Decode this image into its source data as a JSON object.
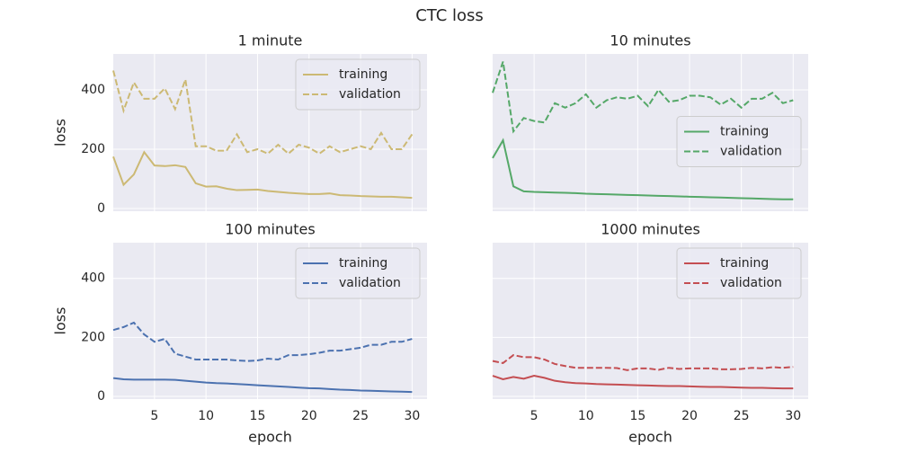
{
  "title": "CTC loss",
  "chart_data": [
    {
      "type": "line",
      "title": "1 minute",
      "ylabel": "loss",
      "x": [
        1,
        2,
        3,
        4,
        5,
        6,
        7,
        8,
        9,
        10,
        11,
        12,
        13,
        14,
        15,
        16,
        17,
        18,
        19,
        20,
        21,
        22,
        23,
        24,
        25,
        26,
        27,
        28,
        29,
        30
      ],
      "xlim": [
        1,
        31.45
      ],
      "ylim": [
        -9,
        521
      ],
      "xticks": [
        5,
        10,
        15,
        20,
        25,
        30
      ],
      "yticks": [
        0,
        200,
        400
      ],
      "xtick_labels": false,
      "ytick_labels": true,
      "grid": true,
      "legend": "upper right",
      "series": [
        {
          "name": "training",
          "color": "#ccb974",
          "linestyle": "solid",
          "values": [
            175,
            80,
            115,
            190,
            145,
            143,
            146,
            140,
            85,
            74,
            75,
            67,
            62,
            63,
            64,
            59,
            56,
            53,
            51,
            49,
            49,
            51,
            45,
            44,
            42,
            41,
            40,
            40,
            38,
            36
          ]
        },
        {
          "name": "validation",
          "color": "#ccb974",
          "linestyle": "dashed",
          "values": [
            465,
            330,
            425,
            370,
            370,
            405,
            335,
            435,
            210,
            210,
            195,
            195,
            250,
            190,
            200,
            185,
            215,
            185,
            215,
            205,
            185,
            210,
            190,
            200,
            210,
            200,
            255,
            200,
            200,
            250
          ]
        }
      ]
    },
    {
      "type": "line",
      "title": "10 minutes",
      "x": [
        1,
        2,
        3,
        4,
        5,
        6,
        7,
        8,
        9,
        10,
        11,
        12,
        13,
        14,
        15,
        16,
        17,
        18,
        19,
        20,
        21,
        22,
        23,
        24,
        25,
        26,
        27,
        28,
        29,
        30
      ],
      "xlim": [
        1,
        31.45
      ],
      "ylim": [
        -9,
        521
      ],
      "xticks": [
        5,
        10,
        15,
        20,
        25,
        30
      ],
      "yticks": [
        0,
        200,
        400
      ],
      "xtick_labels": false,
      "ytick_labels": false,
      "grid": true,
      "legend": "center right",
      "series": [
        {
          "name": "training",
          "color": "#55a868",
          "linestyle": "solid",
          "values": [
            170,
            230,
            75,
            58,
            56,
            55,
            54,
            53,
            52,
            50,
            49,
            48,
            47,
            46,
            45,
            44,
            43,
            42,
            41,
            40,
            39,
            38,
            37,
            36,
            35,
            34,
            33,
            32,
            31,
            31
          ]
        },
        {
          "name": "validation",
          "color": "#55a868",
          "linestyle": "dashed",
          "values": [
            390,
            495,
            260,
            305,
            295,
            290,
            355,
            340,
            355,
            385,
            340,
            365,
            375,
            370,
            380,
            345,
            400,
            360,
            365,
            380,
            380,
            375,
            350,
            370,
            340,
            370,
            370,
            390,
            355,
            365
          ]
        }
      ]
    },
    {
      "type": "line",
      "title": "100 minutes",
      "ylabel": "loss",
      "xlabel": "epoch",
      "x": [
        1,
        2,
        3,
        4,
        5,
        6,
        7,
        8,
        9,
        10,
        11,
        12,
        13,
        14,
        15,
        16,
        17,
        18,
        19,
        20,
        21,
        22,
        23,
        24,
        25,
        26,
        27,
        28,
        29,
        30
      ],
      "xlim": [
        1,
        31.45
      ],
      "ylim": [
        -9,
        521
      ],
      "xticks": [
        5,
        10,
        15,
        20,
        25,
        30
      ],
      "yticks": [
        0,
        200,
        400
      ],
      "xtick_labels": true,
      "ytick_labels": true,
      "grid": true,
      "legend": "upper right",
      "series": [
        {
          "name": "training",
          "color": "#4c72b0",
          "linestyle": "solid",
          "values": [
            62,
            58,
            57,
            57,
            57,
            57,
            56,
            53,
            50,
            47,
            45,
            44,
            42,
            40,
            38,
            36,
            34,
            32,
            30,
            28,
            27,
            25,
            23,
            22,
            20,
            19,
            18,
            17,
            16,
            15
          ]
        },
        {
          "name": "validation",
          "color": "#4c72b0",
          "linestyle": "dashed",
          "values": [
            225,
            235,
            250,
            210,
            185,
            195,
            145,
            135,
            125,
            125,
            125,
            125,
            122,
            120,
            122,
            128,
            125,
            140,
            140,
            143,
            148,
            155,
            155,
            160,
            165,
            175,
            175,
            185,
            185,
            195
          ]
        }
      ]
    },
    {
      "type": "line",
      "title": "1000 minutes",
      "xlabel": "epoch",
      "x": [
        1,
        2,
        3,
        4,
        5,
        6,
        7,
        8,
        9,
        10,
        11,
        12,
        13,
        14,
        15,
        16,
        17,
        18,
        19,
        20,
        21,
        22,
        23,
        24,
        25,
        26,
        27,
        28,
        29,
        30
      ],
      "xlim": [
        1,
        31.45
      ],
      "ylim": [
        -9,
        521
      ],
      "xticks": [
        5,
        10,
        15,
        20,
        25,
        30
      ],
      "yticks": [
        0,
        200,
        400
      ],
      "xtick_labels": true,
      "ytick_labels": false,
      "grid": true,
      "legend": "upper right",
      "series": [
        {
          "name": "training",
          "color": "#c44e52",
          "linestyle": "solid",
          "values": [
            70,
            58,
            66,
            60,
            70,
            63,
            53,
            48,
            45,
            44,
            42,
            41,
            40,
            39,
            38,
            37,
            36,
            35,
            35,
            34,
            33,
            32,
            32,
            31,
            30,
            29,
            29,
            28,
            27,
            27
          ]
        },
        {
          "name": "validation",
          "color": "#c44e52",
          "linestyle": "dashed",
          "values": [
            120,
            113,
            140,
            133,
            133,
            125,
            110,
            103,
            97,
            97,
            97,
            97,
            96,
            89,
            95,
            95,
            90,
            97,
            93,
            95,
            95,
            95,
            92,
            92,
            93,
            97,
            95,
            99,
            97,
            100
          ]
        }
      ]
    }
  ]
}
